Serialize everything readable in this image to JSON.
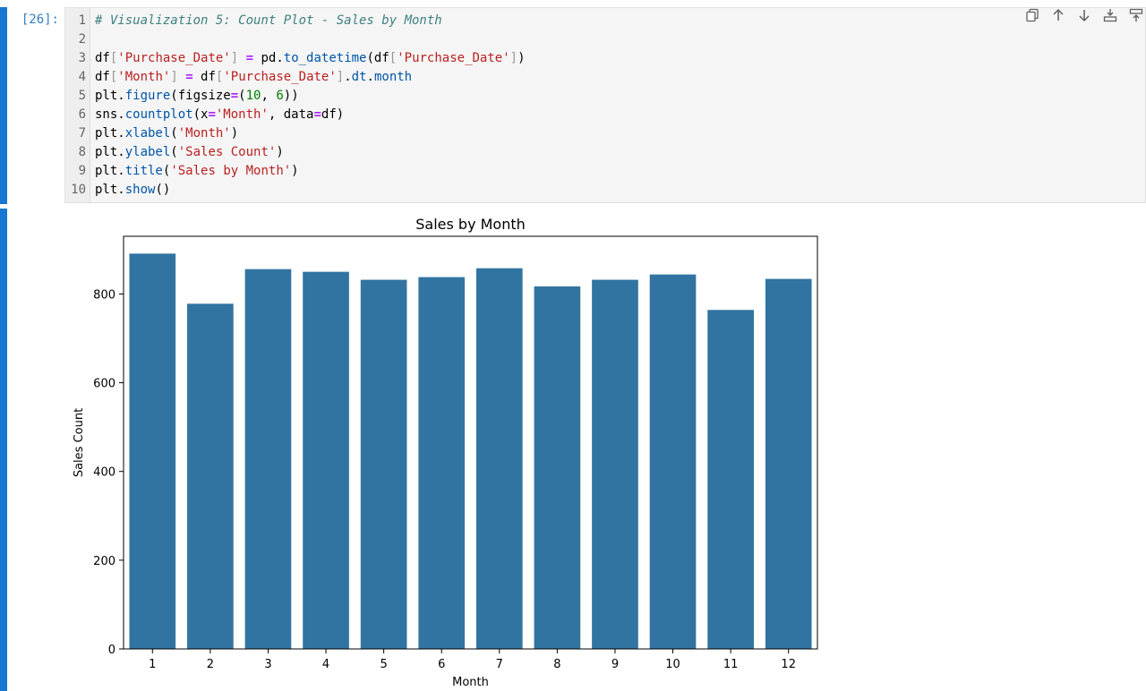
{
  "cell": {
    "prompt": "[26]:",
    "lines": [
      [
        {
          "t": "# Visualization 5: Count Plot - Sales by Month",
          "c": "cm"
        }
      ],
      [],
      [
        {
          "t": "df"
        },
        {
          "t": "[",
          "c": "p"
        },
        {
          "t": "'Purchase_Date'",
          "c": "s"
        },
        {
          "t": "]",
          "c": "p"
        },
        {
          "t": " "
        },
        {
          "t": "=",
          "c": "o"
        },
        {
          "t": " pd."
        },
        {
          "t": "to_datetime",
          "c": "f"
        },
        {
          "t": "(df"
        },
        {
          "t": "[",
          "c": "p"
        },
        {
          "t": "'Purchase_Date'",
          "c": "s"
        },
        {
          "t": "]",
          "c": "p"
        },
        {
          "t": ")"
        }
      ],
      [
        {
          "t": "df"
        },
        {
          "t": "[",
          "c": "p"
        },
        {
          "t": "'Month'",
          "c": "s"
        },
        {
          "t": "]",
          "c": "p"
        },
        {
          "t": " "
        },
        {
          "t": "=",
          "c": "o"
        },
        {
          "t": " df"
        },
        {
          "t": "[",
          "c": "p"
        },
        {
          "t": "'Purchase_Date'",
          "c": "s"
        },
        {
          "t": "]",
          "c": "p"
        },
        {
          "t": "."
        },
        {
          "t": "dt",
          "c": "f"
        },
        {
          "t": "."
        },
        {
          "t": "month",
          "c": "f"
        }
      ],
      [
        {
          "t": "plt."
        },
        {
          "t": "figure",
          "c": "f"
        },
        {
          "t": "(figsize"
        },
        {
          "t": "=",
          "c": "o"
        },
        {
          "t": "("
        },
        {
          "t": "10",
          "c": "n"
        },
        {
          "t": ", "
        },
        {
          "t": "6",
          "c": "n"
        },
        {
          "t": "))"
        }
      ],
      [
        {
          "t": "sns."
        },
        {
          "t": "countplot",
          "c": "f"
        },
        {
          "t": "(x"
        },
        {
          "t": "=",
          "c": "o"
        },
        {
          "t": "'Month'",
          "c": "s"
        },
        {
          "t": ", data"
        },
        {
          "t": "=",
          "c": "o"
        },
        {
          "t": "df)"
        }
      ],
      [
        {
          "t": "plt."
        },
        {
          "t": "xlabel",
          "c": "f"
        },
        {
          "t": "("
        },
        {
          "t": "'Month'",
          "c": "s"
        },
        {
          "t": ")"
        }
      ],
      [
        {
          "t": "plt."
        },
        {
          "t": "ylabel",
          "c": "f"
        },
        {
          "t": "("
        },
        {
          "t": "'Sales Count'",
          "c": "s"
        },
        {
          "t": ")"
        }
      ],
      [
        {
          "t": "plt."
        },
        {
          "t": "title",
          "c": "f"
        },
        {
          "t": "("
        },
        {
          "t": "'Sales by Month'",
          "c": "s"
        },
        {
          "t": ")"
        }
      ],
      [
        {
          "t": "plt."
        },
        {
          "t": "show",
          "c": "f"
        },
        {
          "t": "()"
        }
      ]
    ]
  },
  "syntax_colors": {
    "cm": "#408080",
    "s": "#ba2121",
    "f": "#0055aa",
    "o": "#aa22ff",
    "n": "#008000",
    "p": "#999999"
  },
  "toolbar": [
    {
      "icon": "duplicate-icon",
      "name": "duplicate-cell-button"
    },
    {
      "icon": "arrow-up-icon",
      "name": "move-up-button"
    },
    {
      "icon": "arrow-down-icon",
      "name": "move-down-button"
    },
    {
      "icon": "insert-above-icon",
      "name": "insert-above-button"
    },
    {
      "icon": "insert-below-icon",
      "name": "insert-below-button"
    }
  ],
  "chart_data": {
    "type": "bar",
    "title": "Sales by Month",
    "xlabel": "Month",
    "ylabel": "Sales Count",
    "categories": [
      "1",
      "2",
      "3",
      "4",
      "5",
      "6",
      "7",
      "8",
      "9",
      "10",
      "11",
      "12"
    ],
    "values": [
      891,
      778,
      856,
      850,
      832,
      838,
      858,
      817,
      832,
      844,
      764,
      834
    ],
    "ylim": [
      0,
      930
    ],
    "yticks": [
      0,
      200,
      400,
      600,
      800
    ],
    "bar_color": "#3274a1",
    "grid": false
  }
}
